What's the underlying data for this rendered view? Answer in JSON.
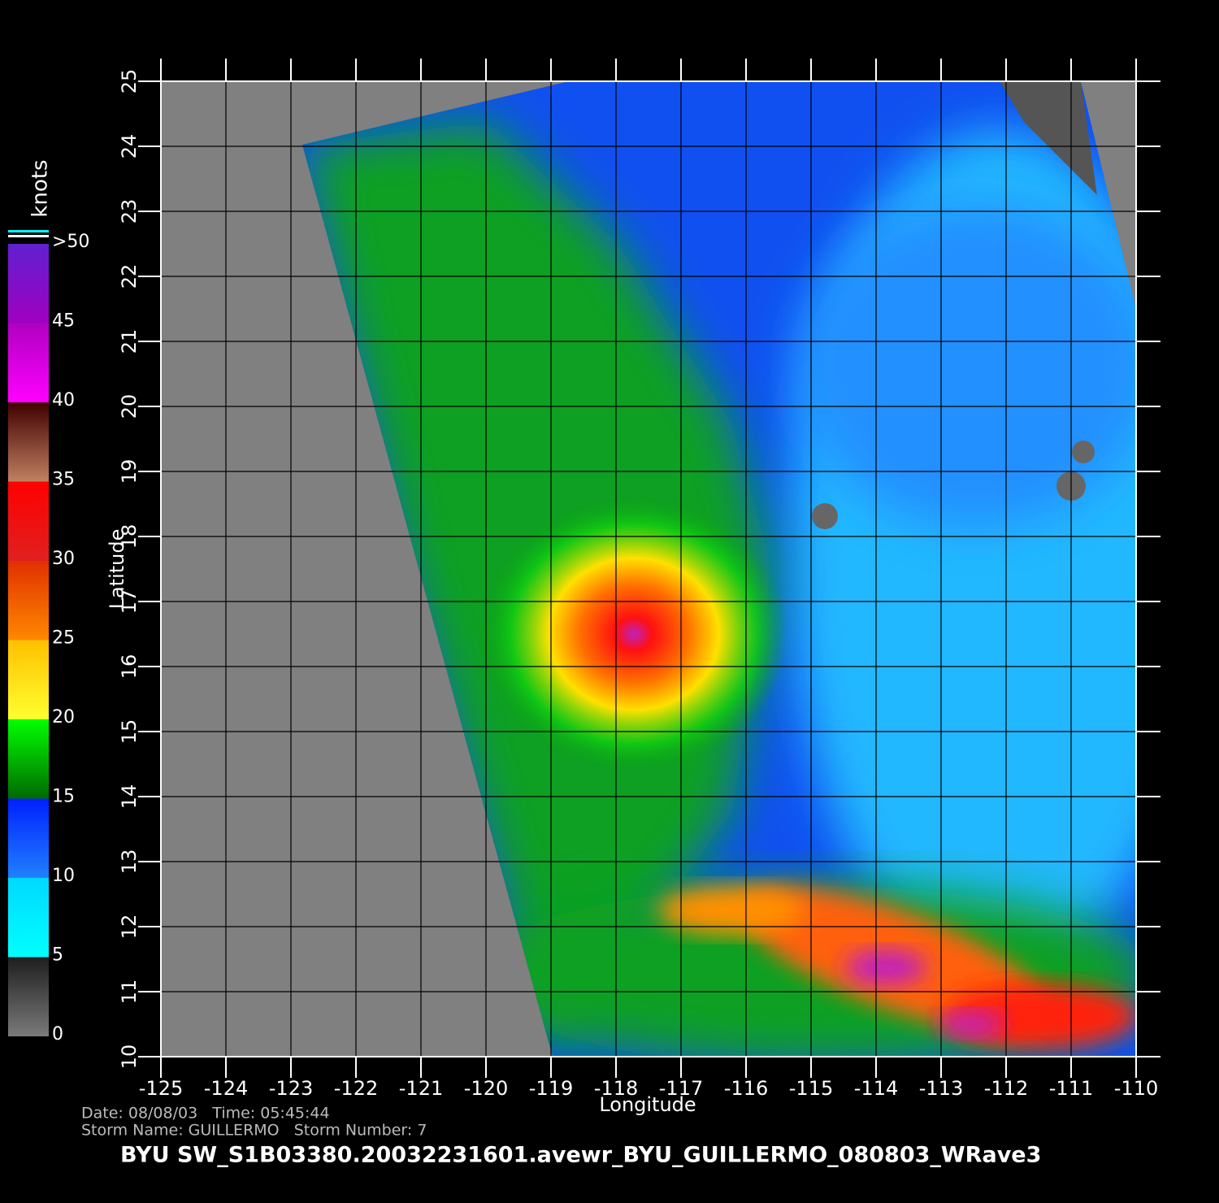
{
  "map": {
    "xlabel": "Longitude",
    "ylabel": "Latitude",
    "xlim": [
      -125,
      -110
    ],
    "ylim": [
      10,
      25
    ],
    "xticks": [
      -125,
      -124,
      -123,
      -122,
      -121,
      -120,
      -119,
      -118,
      -117,
      -116,
      -115,
      -114,
      -113,
      -112,
      -111,
      -110
    ],
    "yticks": [
      10,
      11,
      12,
      13,
      14,
      15,
      16,
      17,
      18,
      19,
      20,
      21,
      22,
      23,
      24,
      25
    ]
  },
  "colorbar": {
    "title": "knots",
    "ticks": [
      0,
      5,
      10,
      15,
      20,
      25,
      30,
      35,
      40,
      45,
      {
        "value": 50,
        "label": ">50"
      }
    ],
    "colors": [
      [
        "#7a7a7a",
        "#1e1e1e"
      ],
      [
        "#00ffff",
        "#00d8ff"
      ],
      [
        "#2080ff",
        "#0020ff"
      ],
      [
        "#006a00",
        "#00ff00"
      ],
      [
        "#ffff30",
        "#ffc000"
      ],
      [
        "#ff8800",
        "#e03000"
      ],
      [
        "#e02020",
        "#ff0000"
      ],
      [
        "#c08060",
        "#400000"
      ],
      [
        "#ff00ff",
        "#b000c0"
      ],
      [
        "#a000c0",
        "#6020d0"
      ]
    ]
  },
  "info": {
    "line1": "Date: 08/08/03   Time: 05:45:44",
    "line2": "Storm Name: GUILLERMO   Storm Number: 7"
  },
  "caption": "BYU  SW_S1B03380.20032231601.avewr_BYU_GUILLERMO_080803_WRave3"
}
